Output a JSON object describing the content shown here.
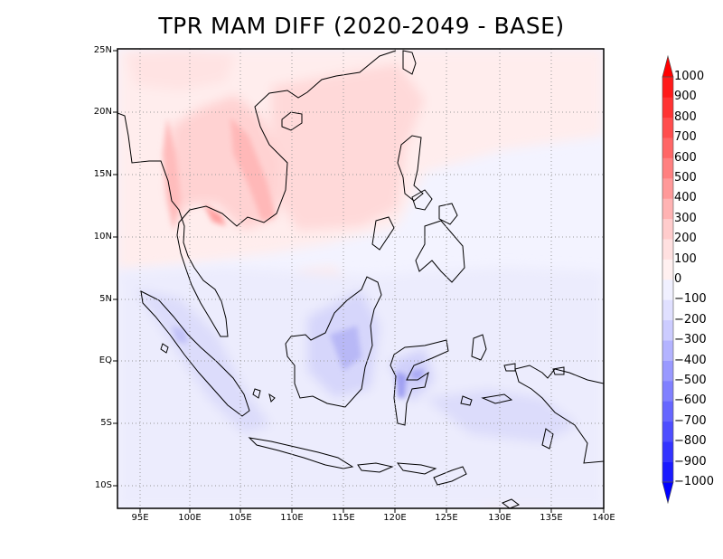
{
  "title": "TPR MAM DIFF (2020-2049 - BASE)",
  "map": {
    "lat_labels": [
      "25N",
      "20N",
      "15N",
      "10N",
      "5N",
      "EQ",
      "5S",
      "10S"
    ],
    "lon_labels": [
      "95E",
      "100E",
      "105E",
      "110E",
      "115E",
      "120E",
      "125E",
      "130E",
      "135E",
      "140E"
    ],
    "grid": "dotted",
    "region": "Southeast Asia / Maritime Continent"
  },
  "colorbar": {
    "labels": [
      "1000",
      "900",
      "800",
      "700",
      "600",
      "500",
      "400",
      "300",
      "200",
      "100",
      "0",
      "−100",
      "−200",
      "−300",
      "−400",
      "−500",
      "−600",
      "−700",
      "−800",
      "−900",
      "−1000"
    ],
    "colors": [
      "#ff1a1a",
      "#ff3333",
      "#ff4d4d",
      "#ff6666",
      "#ff8080",
      "#ff9999",
      "#ffb3b3",
      "#ffcccc",
      "#ffe0e0",
      "#fff0f0",
      "#f0f0ff",
      "#e0e0ff",
      "#ccccff",
      "#b3b3ff",
      "#9999ff",
      "#8080ff",
      "#6666ff",
      "#4d4dff",
      "#3333ff",
      "#1a1aff"
    ],
    "top_arrow_color": "#ff0000",
    "bottom_arrow_color": "#0000ff"
  }
}
